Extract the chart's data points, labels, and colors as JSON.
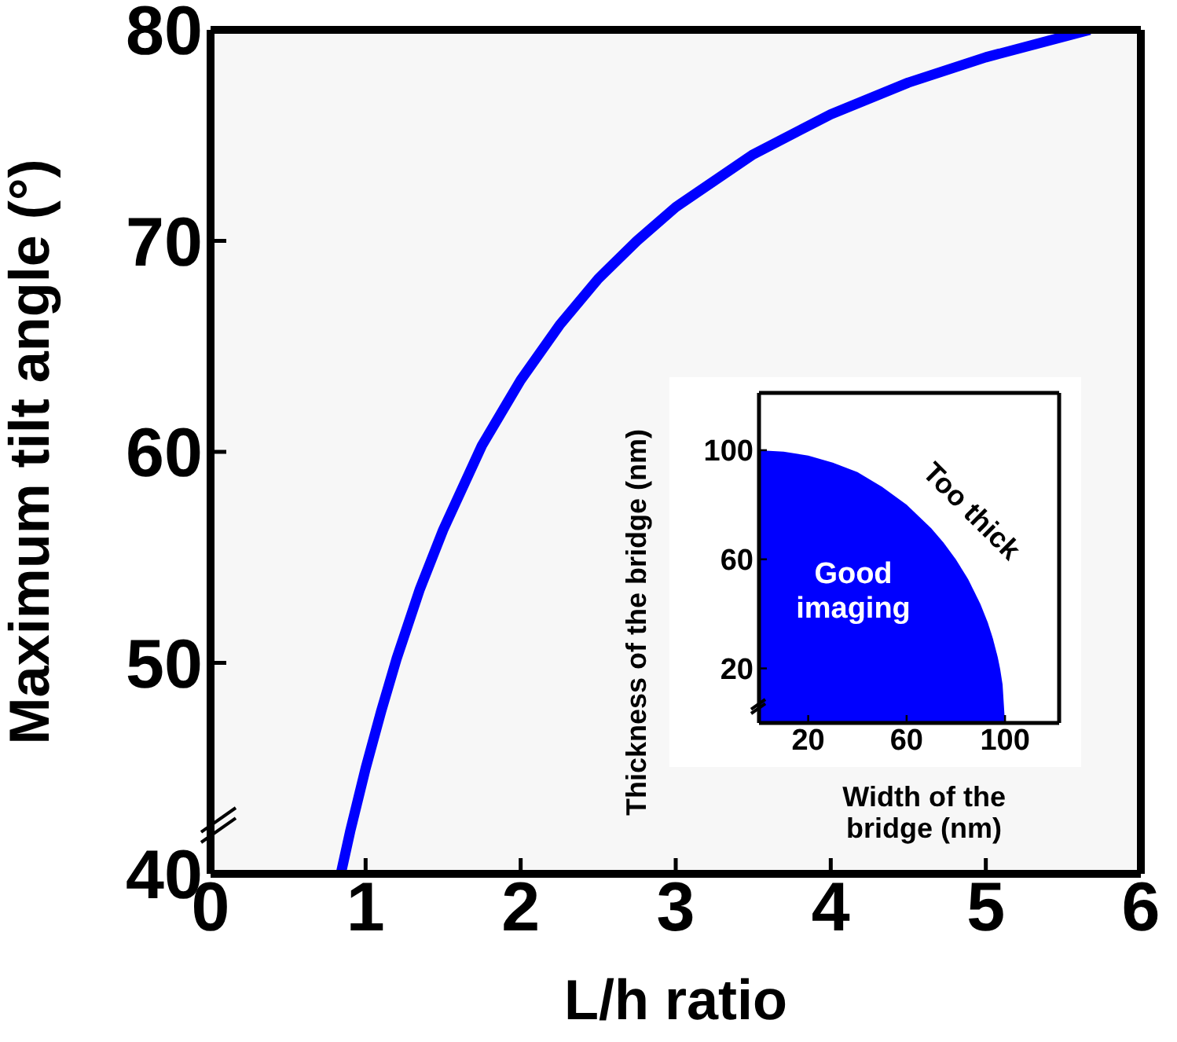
{
  "chart_data": [
    {
      "type": "line",
      "xlabel": "L/h ratio",
      "ylabel": "Maximum tilt angle (°)",
      "color": "#0000ff",
      "x": [
        0.84,
        0.9,
        1,
        1.1,
        1.2,
        1.35,
        1.5,
        1.75,
        2,
        2.25,
        2.5,
        2.75,
        3,
        3.5,
        4,
        4.5,
        5,
        5.67
      ],
      "values": [
        40,
        42,
        45,
        47.7,
        50.2,
        53.5,
        56.3,
        60.3,
        63.4,
        66,
        68.2,
        70,
        71.6,
        74.1,
        76,
        77.5,
        78.7,
        80
      ],
      "xlim": [
        0,
        6
      ],
      "ylim": [
        40,
        80
      ],
      "xticks": [
        0,
        1,
        2,
        3,
        4,
        5,
        6
      ],
      "yticks": [
        40,
        50,
        60,
        70,
        80
      ]
    },
    {
      "type": "area",
      "xlabel": "Width of the bridge (nm)",
      "ylabel": "Thickness of the bridge (nm)",
      "color": "#0000ff",
      "x": [
        0,
        10,
        20,
        30,
        40,
        50,
        60,
        70,
        75,
        80,
        85,
        90,
        93,
        95,
        97,
        98,
        99,
        100
      ],
      "values": [
        100,
        99.5,
        98,
        95.4,
        92,
        86.6,
        80,
        71.4,
        66.1,
        60,
        52.7,
        43.6,
        36.8,
        31.2,
        24.3,
        19.9,
        14.1,
        0
      ],
      "xlim": [
        0,
        122
      ],
      "ylim": [
        0,
        121
      ],
      "xticks": [
        20,
        60,
        100
      ],
      "yticks": [
        20,
        60,
        100
      ],
      "annotations": [
        "Good imaging",
        "Too thick"
      ]
    }
  ]
}
